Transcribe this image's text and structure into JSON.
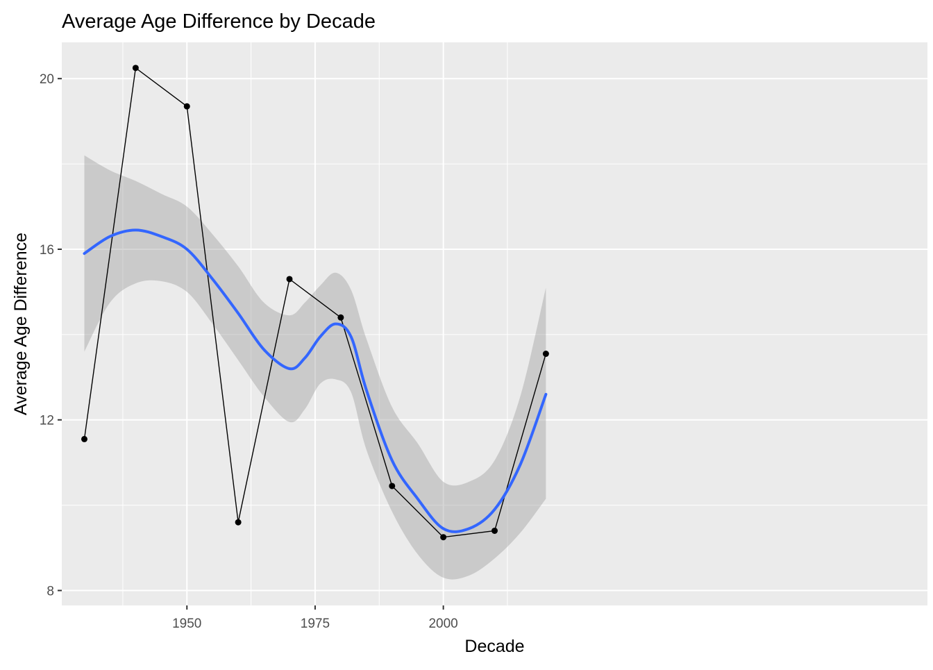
{
  "chart_data": {
    "type": "line",
    "title": "Average Age Difference by Decade",
    "xlabel": "Decade",
    "ylabel": "Average Age Difference",
    "xlim": [
      1925.6,
      2094.4
    ],
    "ylim": [
      7.65,
      20.85
    ],
    "x_ticks": [
      1950,
      1975,
      2000
    ],
    "x_tick_labels": [
      "1950",
      "1975",
      "2000"
    ],
    "y_ticks": [
      8,
      12,
      16,
      20
    ],
    "y_tick_labels": [
      "8",
      "12",
      "16",
      "20"
    ],
    "grid": true,
    "legend": "none",
    "series": [
      {
        "type": "line+points",
        "x": [
          1930,
          1940,
          1950,
          1960,
          1970,
          1980,
          1990,
          2000,
          2010,
          2020
        ],
        "y": [
          11.55,
          20.25,
          19.35,
          9.6,
          15.3,
          14.4,
          10.45,
          9.25,
          9.4,
          13.55
        ],
        "color": "#000000"
      },
      {
        "type": "smooth",
        "x": [
          1930,
          1935,
          1940,
          1945,
          1950,
          1955,
          1960,
          1965,
          1970,
          1973,
          1976,
          1979,
          1982,
          1985,
          1990,
          1995,
          2000,
          2005,
          2010,
          2015,
          2020
        ],
        "y": [
          15.9,
          16.3,
          16.45,
          16.3,
          16.0,
          15.3,
          14.5,
          13.65,
          13.2,
          13.45,
          13.95,
          14.25,
          13.95,
          12.7,
          11.05,
          10.15,
          9.45,
          9.45,
          9.9,
          10.95,
          12.6
        ],
        "lower": [
          13.6,
          14.75,
          15.2,
          15.25,
          15.0,
          14.25,
          13.4,
          12.55,
          11.95,
          12.25,
          12.85,
          12.95,
          12.65,
          11.3,
          9.85,
          8.85,
          8.3,
          8.35,
          8.75,
          9.35,
          10.15
        ],
        "upper": [
          18.2,
          17.85,
          17.6,
          17.3,
          17.0,
          16.35,
          15.6,
          14.75,
          14.45,
          14.75,
          15.15,
          15.45,
          15.05,
          13.9,
          12.3,
          11.45,
          10.55,
          10.55,
          11.05,
          12.55,
          15.1
        ],
        "color": "#3366ff",
        "band_color": "#999999"
      }
    ]
  }
}
